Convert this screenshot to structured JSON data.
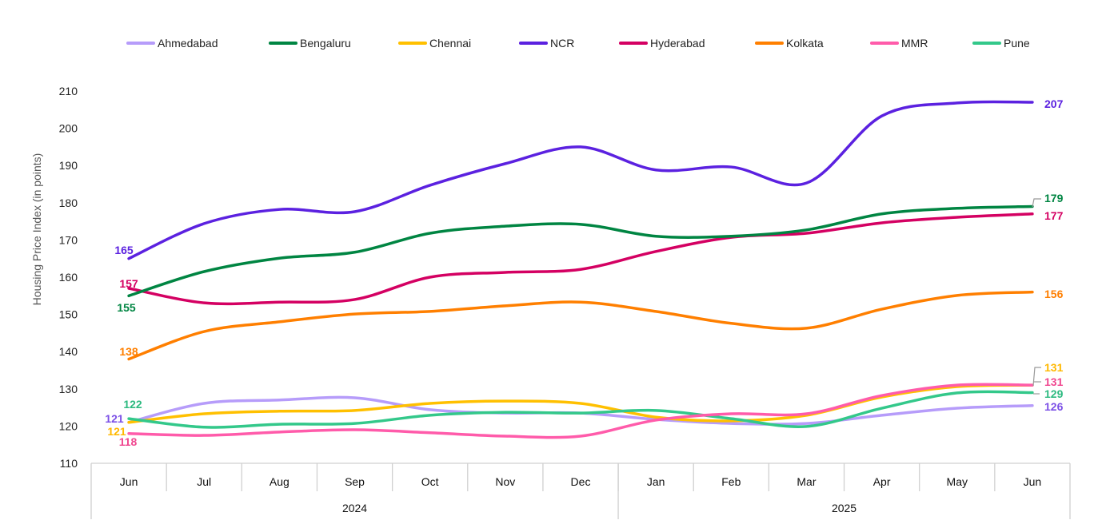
{
  "chart_data": {
    "type": "line",
    "title": "",
    "xlabel": "",
    "ylabel": "Housing Price Index (in points)",
    "ylim": [
      110,
      210
    ],
    "yticks": [
      110,
      120,
      130,
      140,
      150,
      160,
      170,
      180,
      190,
      200,
      210
    ],
    "grid": false,
    "legend": "top",
    "categories": [
      "Jun",
      "Jul",
      "Aug",
      "Sep",
      "Oct",
      "Nov",
      "Dec",
      "Jan",
      "Feb",
      "Mar",
      "Apr",
      "May",
      "Jun"
    ],
    "year_groups": [
      {
        "label": "2024",
        "count": 7
      },
      {
        "label": "2025",
        "count": 6
      }
    ],
    "series": [
      {
        "name": "Ahmedabad",
        "color": "#B69CFA",
        "label_color": "#7B4FE6",
        "values": [
          121,
          126.1,
          127,
          127.6,
          124.4,
          123.5,
          123.5,
          121.8,
          120.7,
          120.7,
          122.9,
          124.8,
          125.5
        ],
        "start_label": "121",
        "end_label": "126"
      },
      {
        "name": "Bengaluru",
        "color": "#008542",
        "label_color": "#008542",
        "values": [
          155,
          161.5,
          165.1,
          166.7,
          171.8,
          173.7,
          174.2,
          171,
          171,
          172.7,
          177,
          178.5,
          179
        ],
        "start_label": "155",
        "end_label": "179"
      },
      {
        "name": "Chennai",
        "color": "#FFC000",
        "label_color": "#FFB800",
        "values": [
          121,
          123.3,
          124,
          124.2,
          126.1,
          126.7,
          126.1,
          122.4,
          121.4,
          122.9,
          127.8,
          130.6,
          131
        ],
        "start_label": "121",
        "end_label": "131"
      },
      {
        "name": "NCR",
        "color": "#5B21E0",
        "label_color": "#5B21E0",
        "values": [
          165,
          174.4,
          178.2,
          177.6,
          184.7,
          190.5,
          195,
          188.8,
          189.6,
          185.3,
          203.3,
          206.8,
          207
        ],
        "start_label": "165",
        "end_label": "207"
      },
      {
        "name": "Hyderabad",
        "color": "#D40062",
        "label_color": "#D40062",
        "values": [
          157,
          153.1,
          153.3,
          154,
          160,
          161.3,
          162.1,
          166.9,
          170.7,
          171.8,
          174.6,
          176.1,
          177
        ],
        "start_label": "157",
        "end_label": "177"
      },
      {
        "name": "Kolkata",
        "color": "#FF7F00",
        "label_color": "#FF7F00",
        "values": [
          138,
          145.4,
          148,
          150.1,
          150.8,
          152.3,
          153.3,
          150.8,
          147.6,
          146.3,
          151.4,
          155.1,
          156
        ],
        "start_label": "138",
        "end_label": "156"
      },
      {
        "name": "MMR",
        "color": "#FF5BAA",
        "label_color": "#F0468F",
        "values": [
          118,
          117.5,
          118.4,
          119,
          118.2,
          117.3,
          117.3,
          121.6,
          123.3,
          123.3,
          128.2,
          131,
          131
        ],
        "start_label": "118",
        "end_label": "131"
      },
      {
        "name": "Pune",
        "color": "#33C88A",
        "label_color": "#2DBA80",
        "values": [
          122,
          119.7,
          120.5,
          120.7,
          122.9,
          123.7,
          123.5,
          124.2,
          122,
          119.9,
          124.8,
          128.9,
          129
        ],
        "start_label": "122",
        "end_label": "129"
      }
    ]
  }
}
